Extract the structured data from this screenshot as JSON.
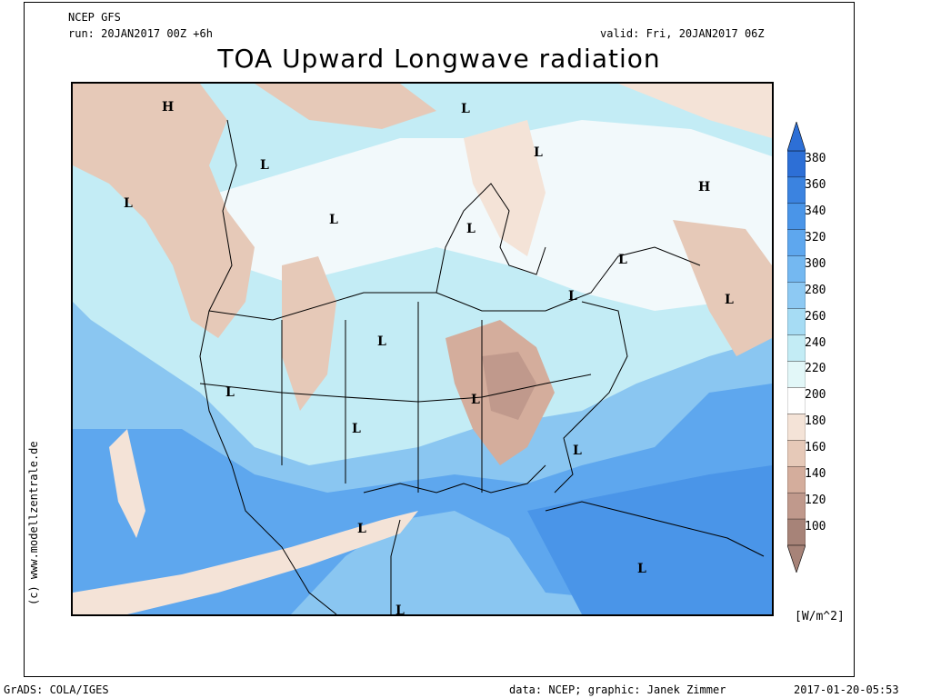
{
  "header": {
    "model": "NCEP GFS",
    "run": "run: 20JAN2017 00Z +6h",
    "valid": "valid: Fri, 20JAN2017 06Z",
    "title": "TOA Upward Longwave radiation"
  },
  "credit_vertical": "(c) www.modellzentrale.de",
  "footer": {
    "left": "GrADS: COLA/IGES",
    "middle": "data: NCEP; graphic: Janek Zimmer",
    "right": "2017-01-20-05:53"
  },
  "colorbar": {
    "unit": "[W/m^2]",
    "levels": [
      "380",
      "360",
      "340",
      "320",
      "300",
      "280",
      "260",
      "240",
      "220",
      "200",
      "180",
      "160",
      "140",
      "120",
      "100"
    ],
    "colors": [
      "#2d6fd6",
      "#3b83e0",
      "#4a95e8",
      "#5ea7ee",
      "#74b8f1",
      "#8dc9f3",
      "#a6dcf4",
      "#c3ecf5",
      "#e2f7f8",
      "#ffffff",
      "#f4e3d7",
      "#e6c9b8",
      "#d4ad9c",
      "#c0998c",
      "#a78378"
    ]
  },
  "pressure_centers": [
    {
      "label": "H"
    },
    {
      "label": "L"
    },
    {
      "label": "L"
    },
    {
      "label": "L"
    },
    {
      "label": "L"
    },
    {
      "label": "L"
    },
    {
      "label": "H"
    },
    {
      "label": "L"
    },
    {
      "label": "L"
    },
    {
      "label": "L"
    },
    {
      "label": "L"
    },
    {
      "label": "L"
    },
    {
      "label": "L"
    },
    {
      "label": "L"
    },
    {
      "label": "L"
    },
    {
      "label": "L"
    },
    {
      "label": "L"
    },
    {
      "label": "L"
    },
    {
      "label": "L"
    }
  ]
}
